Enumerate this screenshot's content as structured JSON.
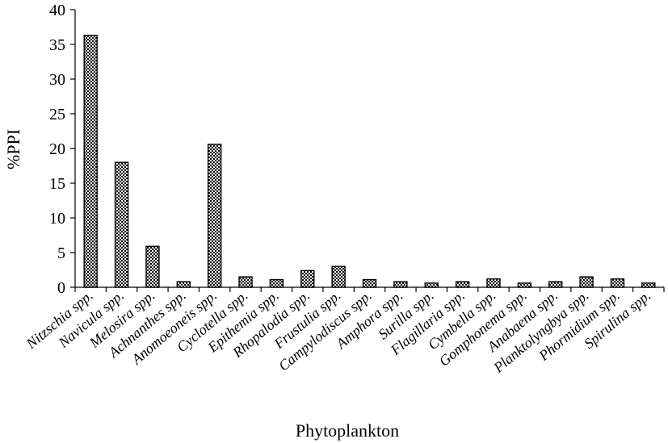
{
  "chart_data": {
    "type": "bar",
    "title": "",
    "xlabel": "Phytoplankton",
    "ylabel": "%PPI",
    "ylim": [
      0,
      40
    ],
    "yticks": [
      "0",
      "5",
      "10",
      "15",
      "20",
      "25",
      "30",
      "35",
      "40"
    ],
    "grid": false,
    "legend": "none",
    "bar_pattern": "checkered",
    "categories": [
      "Nitzschia spp.",
      "Navicula spp.",
      "Melosira spp.",
      "Achnanthes spp.",
      "Anomoeoneis spp.",
      "Cyclotella spp.",
      "Epithemia spp.",
      "Rhopalodia spp.",
      "Frustulia spp.",
      "Campylodiscus spp.",
      "Amphora spp.",
      "Surilla spp.",
      "Flagillaria spp.",
      "Cymbella spp.",
      "Gomphonema spp.",
      "Anabaena spp.",
      "Planktolyngbya spp.",
      "Phormidium spp.",
      "Spirulina spp."
    ],
    "values": [
      36.3,
      18.0,
      5.9,
      0.8,
      20.6,
      1.5,
      1.1,
      2.4,
      3.0,
      1.1,
      0.8,
      0.6,
      0.8,
      1.2,
      0.6,
      0.8,
      1.5,
      1.2,
      0.6
    ],
    "colors": {
      "bar_fill": "#ffffff",
      "pattern": "#000000",
      "axis": "#000000"
    }
  }
}
